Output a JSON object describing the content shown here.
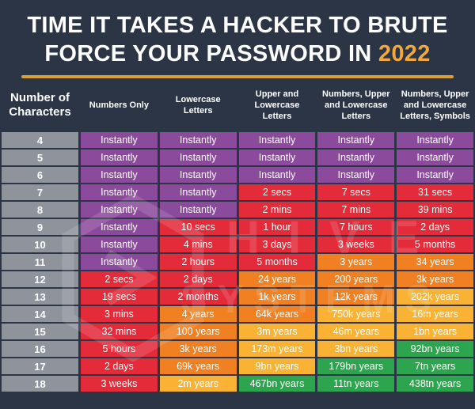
{
  "title": {
    "line1": "TIME IT TAKES A HACKER TO BRUTE",
    "line2_prefix": "FORCE YOUR PASSWORD IN",
    "year": "2022"
  },
  "watermark": {
    "line1": "HIVE",
    "line2": "SYSTEMS",
    "icon": "hive-hexagon-logo"
  },
  "colors": {
    "background": "#2b3545",
    "title_text": "#ffffff",
    "year_gold": "#f2a93a",
    "underline_gold": "#d9a032",
    "char_column_gray": "#8f939c",
    "purple": "#8c4a9d",
    "red": "#e42b3a",
    "orange": "#f08021",
    "yellow": "#f9b233",
    "green": "#2da54f"
  },
  "chart_data": {
    "type": "table",
    "title": "TIME IT TAKES A HACKER TO BRUTE FORCE YOUR PASSWORD IN 2022",
    "columns": [
      "Number of Characters",
      "Numbers Only",
      "Lowercase Letters",
      "Upper and Lowercase Letters",
      "Numbers, Upper and Lowercase Letters",
      "Numbers, Upper and Lowercase Letters, Symbols"
    ],
    "rows": [
      {
        "chars": "4",
        "cells": [
          {
            "text": "Instantly",
            "color": "purple"
          },
          {
            "text": "Instantly",
            "color": "purple"
          },
          {
            "text": "Instantly",
            "color": "purple"
          },
          {
            "text": "Instantly",
            "color": "purple"
          },
          {
            "text": "Instantly",
            "color": "purple"
          }
        ]
      },
      {
        "chars": "5",
        "cells": [
          {
            "text": "Instantly",
            "color": "purple"
          },
          {
            "text": "Instantly",
            "color": "purple"
          },
          {
            "text": "Instantly",
            "color": "purple"
          },
          {
            "text": "Instantly",
            "color": "purple"
          },
          {
            "text": "Instantly",
            "color": "purple"
          }
        ]
      },
      {
        "chars": "6",
        "cells": [
          {
            "text": "Instantly",
            "color": "purple"
          },
          {
            "text": "Instantly",
            "color": "purple"
          },
          {
            "text": "Instantly",
            "color": "purple"
          },
          {
            "text": "Instantly",
            "color": "purple"
          },
          {
            "text": "Instantly",
            "color": "purple"
          }
        ]
      },
      {
        "chars": "7",
        "cells": [
          {
            "text": "Instantly",
            "color": "purple"
          },
          {
            "text": "Instantly",
            "color": "purple"
          },
          {
            "text": "2 secs",
            "color": "red"
          },
          {
            "text": "7 secs",
            "color": "red"
          },
          {
            "text": "31 secs",
            "color": "red"
          }
        ]
      },
      {
        "chars": "8",
        "cells": [
          {
            "text": "Instantly",
            "color": "purple"
          },
          {
            "text": "Instantly",
            "color": "purple"
          },
          {
            "text": "2 mins",
            "color": "red"
          },
          {
            "text": "7 mins",
            "color": "red"
          },
          {
            "text": "39 mins",
            "color": "red"
          }
        ]
      },
      {
        "chars": "9",
        "cells": [
          {
            "text": "Instantly",
            "color": "purple"
          },
          {
            "text": "10 secs",
            "color": "red"
          },
          {
            "text": "1 hour",
            "color": "red"
          },
          {
            "text": "7 hours",
            "color": "red"
          },
          {
            "text": "2 days",
            "color": "red"
          }
        ]
      },
      {
        "chars": "10",
        "cells": [
          {
            "text": "Instantly",
            "color": "purple"
          },
          {
            "text": "4 mins",
            "color": "red"
          },
          {
            "text": "3 days",
            "color": "red"
          },
          {
            "text": "3 weeks",
            "color": "red"
          },
          {
            "text": "5 months",
            "color": "red"
          }
        ]
      },
      {
        "chars": "11",
        "cells": [
          {
            "text": "Instantly",
            "color": "purple"
          },
          {
            "text": "2 hours",
            "color": "red"
          },
          {
            "text": "5 months",
            "color": "red"
          },
          {
            "text": "3 years",
            "color": "orange"
          },
          {
            "text": "34 years",
            "color": "orange"
          }
        ]
      },
      {
        "chars": "12",
        "cells": [
          {
            "text": "2 secs",
            "color": "red"
          },
          {
            "text": "2 days",
            "color": "red"
          },
          {
            "text": "24 years",
            "color": "orange"
          },
          {
            "text": "200 years",
            "color": "orange"
          },
          {
            "text": "3k years",
            "color": "orange"
          }
        ]
      },
      {
        "chars": "13",
        "cells": [
          {
            "text": "19 secs",
            "color": "red"
          },
          {
            "text": "2 months",
            "color": "red"
          },
          {
            "text": "1k years",
            "color": "orange"
          },
          {
            "text": "12k years",
            "color": "orange"
          },
          {
            "text": "202k years",
            "color": "yellow"
          }
        ]
      },
      {
        "chars": "14",
        "cells": [
          {
            "text": "3 mins",
            "color": "red"
          },
          {
            "text": "4 years",
            "color": "orange"
          },
          {
            "text": "64k years",
            "color": "orange"
          },
          {
            "text": "750k years",
            "color": "yellow"
          },
          {
            "text": "16m years",
            "color": "yellow"
          }
        ]
      },
      {
        "chars": "15",
        "cells": [
          {
            "text": "32 mins",
            "color": "red"
          },
          {
            "text": "100 years",
            "color": "orange"
          },
          {
            "text": "3m years",
            "color": "yellow"
          },
          {
            "text": "46m years",
            "color": "yellow"
          },
          {
            "text": "1bn years",
            "color": "yellow"
          }
        ]
      },
      {
        "chars": "16",
        "cells": [
          {
            "text": "5 hours",
            "color": "red"
          },
          {
            "text": "3k years",
            "color": "orange"
          },
          {
            "text": "173m years",
            "color": "yellow"
          },
          {
            "text": "3bn years",
            "color": "yellow"
          },
          {
            "text": "92bn years",
            "color": "green"
          }
        ]
      },
      {
        "chars": "17",
        "cells": [
          {
            "text": "2 days",
            "color": "red"
          },
          {
            "text": "69k years",
            "color": "orange"
          },
          {
            "text": "9bn years",
            "color": "yellow"
          },
          {
            "text": "179bn years",
            "color": "green"
          },
          {
            "text": "7tn years",
            "color": "green"
          }
        ]
      },
      {
        "chars": "18",
        "cells": [
          {
            "text": "3 weeks",
            "color": "red"
          },
          {
            "text": "2m years",
            "color": "yellow"
          },
          {
            "text": "467bn years",
            "color": "green"
          },
          {
            "text": "11tn years",
            "color": "green"
          },
          {
            "text": "438tn years",
            "color": "green"
          }
        ]
      }
    ]
  }
}
